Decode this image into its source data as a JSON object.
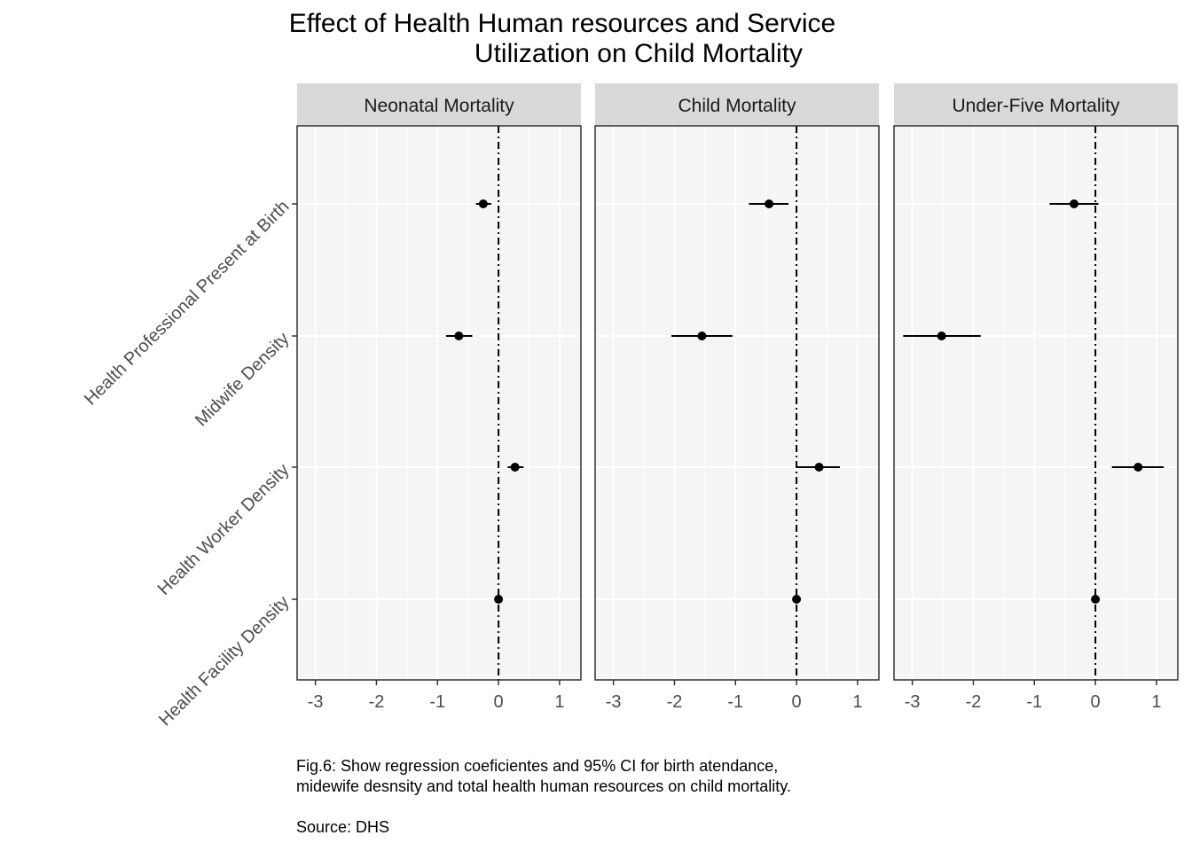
{
  "chart_data": {
    "type": "scatter",
    "subtype": "coefficient-plot-facets",
    "title_line1": "Effect of Health Human resources and Service",
    "title_line2": "Utilization on Child Mortality",
    "xlabel": "",
    "ylabel": "",
    "xlim": [
      -3.3,
      1.35
    ],
    "x_ticks": [
      -3,
      -2,
      -1,
      0,
      1
    ],
    "x_tick_labels": [
      "-3",
      "-2",
      "-1",
      "0",
      "1"
    ],
    "reference_line_x": 0,
    "grid": true,
    "legend": "none",
    "categories": [
      "Health Professional Present at Birth",
      "Midwife Density",
      "Health Worker Density",
      "Health Facility Density"
    ],
    "panels": [
      {
        "name": "Neonatal Mortality",
        "estimates": [
          -0.25,
          -0.65,
          0.27,
          0.0
        ],
        "ci_low": [
          -0.37,
          -0.86,
          0.15,
          -0.05
        ],
        "ci_high": [
          -0.12,
          -0.43,
          0.41,
          0.05
        ]
      },
      {
        "name": "Child Mortality",
        "estimates": [
          -0.45,
          -1.55,
          0.37,
          0.0
        ],
        "ci_low": [
          -0.78,
          -2.05,
          0.0,
          -0.05
        ],
        "ci_high": [
          -0.13,
          -1.05,
          0.71,
          0.05
        ]
      },
      {
        "name": "Under-Five Mortality",
        "estimates": [
          -0.35,
          -2.52,
          0.7,
          0.0
        ],
        "ci_low": [
          -0.75,
          -3.15,
          0.27,
          -0.05
        ],
        "ci_high": [
          0.05,
          -1.88,
          1.12,
          0.05
        ]
      }
    ]
  },
  "caption": {
    "line1": "Fig.6: Show regression coeficientes and 95% CI for birth atendance,",
    "line2": "midewife desnsity and total health human resources on child mortality.",
    "line3": "Source: DHS"
  },
  "colors": {
    "panel_bg": "#f5f5f5",
    "strip_bg": "#d9d9d9",
    "grid": "#ffffff",
    "ink": "#000000",
    "axis_text": "#4d4d4d"
  }
}
